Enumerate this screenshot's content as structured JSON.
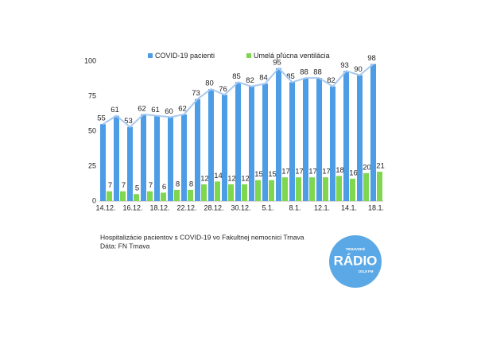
{
  "chart_data": {
    "type": "bar",
    "categories": [
      "14.12.",
      null,
      "16.12.",
      null,
      "18.12.",
      null,
      "22.12.",
      null,
      "28.12.",
      null,
      "30.12.",
      null,
      "5.1.",
      null,
      "8.1.",
      null,
      "12.1.",
      null,
      "14.1.",
      null,
      "18.1."
    ],
    "series": [
      {
        "name": "COVID-19 pacienti",
        "color": "#4d9de6",
        "values": [
          55,
          61,
          53,
          62,
          61,
          60,
          62,
          73,
          80,
          76,
          85,
          82,
          84,
          95,
          85,
          88,
          88,
          82,
          93,
          90,
          98
        ]
      },
      {
        "name": "Umelá pľúcna ventilácia",
        "color": "#7fd64f",
        "values": [
          7,
          7,
          5,
          7,
          6,
          8,
          8,
          12,
          14,
          12,
          12,
          15,
          15,
          17,
          17,
          17,
          17,
          18,
          16,
          20,
          21
        ]
      }
    ],
    "trend_color": "#a9c9ef",
    "ylim": [
      0,
      100
    ],
    "yticks": [
      0,
      25,
      50,
      75,
      100
    ],
    "grid": false,
    "caption": [
      "Hospitalizácie pacientov s COVID-19 vo Fakultnej nemocnici Trnava",
      "Dáta: FN Trnava"
    ],
    "logo": {
      "top": "TRNAVSKÉ",
      "main": "RÁDIO",
      "bottom": "102,8 FM",
      "color": "#5aa9e6"
    }
  }
}
